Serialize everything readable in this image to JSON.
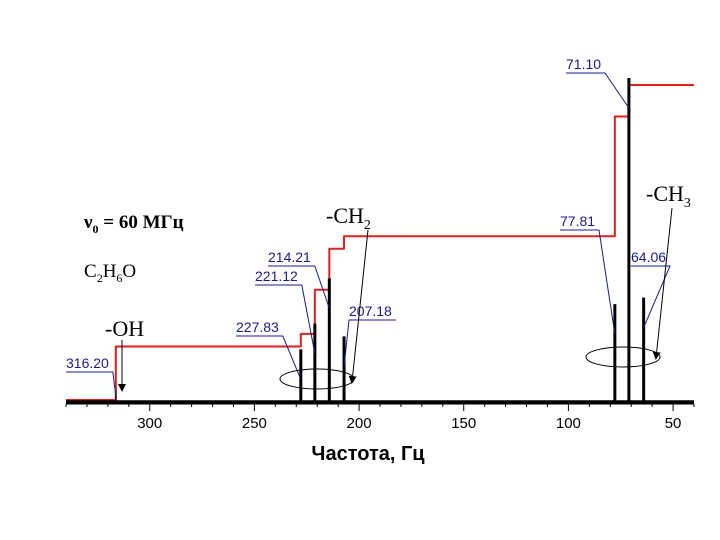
{
  "chart_data": {
    "type": "line",
    "title": "",
    "xlabel": "Частота, Гц",
    "ylabel": "",
    "xlim": [
      340,
      40
    ],
    "x_reversed": true,
    "x_ticks": [
      300,
      250,
      200,
      150,
      100,
      50
    ],
    "x_tick_labels": [
      "300",
      "250",
      "200",
      "150",
      "100",
      "50"
    ],
    "grid": false,
    "peaks": [
      {
        "x": 316.2,
        "label": "316.20",
        "height": 0.03
      },
      {
        "x": 227.83,
        "label": "227.83",
        "height": 0.16
      },
      {
        "x": 221.12,
        "label": "221.12",
        "height": 0.24
      },
      {
        "x": 214.21,
        "label": "214.21",
        "height": 0.38
      },
      {
        "x": 207.18,
        "label": "207.18",
        "height": 0.2
      },
      {
        "x": 77.81,
        "label": "77.81",
        "height": 0.3
      },
      {
        "x": 71.1,
        "label": "71.10",
        "height": 1.0
      },
      {
        "x": 64.06,
        "label": "64.06",
        "height": 0.32
      }
    ],
    "integral_levels": [
      {
        "from": 340,
        "to": 316.2,
        "level": 0.0
      },
      {
        "from": 316.2,
        "to": 227.83,
        "level": 0.17
      },
      {
        "from": 227.83,
        "to": 221.12,
        "level": 0.21
      },
      {
        "from": 221.12,
        "to": 214.21,
        "level": 0.35
      },
      {
        "from": 214.21,
        "to": 207.18,
        "level": 0.48
      },
      {
        "from": 207.18,
        "to": 77.81,
        "level": 0.52
      },
      {
        "from": 77.81,
        "to": 71.1,
        "level": 0.9
      },
      {
        "from": 71.1,
        "to": 64.06,
        "level": 1.0
      },
      {
        "from": 64.06,
        "to": 40,
        "level": 1.0
      }
    ],
    "annotations": {
      "nu0_prefix": "ν",
      "nu0_sub": "0",
      "nu0_rest": " = 60 МГц",
      "formula": [
        "C",
        "2",
        "H",
        "6",
        "O"
      ],
      "oh": "-OH",
      "ch2_main": "-CH",
      "ch2_sub": "2",
      "ch3_main": "-CH",
      "ch3_sub": "3"
    },
    "colors": {
      "spectrum": "#000000",
      "integral": "#e0201c",
      "peak_label": "#1a1a8c",
      "axis": "#000000"
    }
  }
}
